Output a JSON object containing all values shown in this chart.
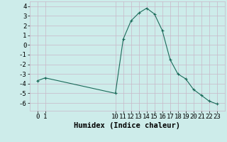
{
  "x": [
    0,
    1,
    10,
    11,
    12,
    13,
    14,
    15,
    16,
    17,
    18,
    19,
    20,
    21,
    22,
    23
  ],
  "y": [
    -3.7,
    -3.4,
    -5.0,
    0.6,
    2.5,
    3.3,
    3.8,
    3.2,
    1.5,
    -1.5,
    -3.0,
    -3.5,
    -4.6,
    -5.2,
    -5.8,
    -6.1
  ],
  "line_color": "#1a6b5a",
  "marker": "+",
  "marker_size": 3,
  "bg_color": "#cdecea",
  "grid_color": "#c8b8c8",
  "xlabel": "Humidex (Indice chaleur)",
  "ylim": [
    -6.8,
    4.5
  ],
  "yticks": [
    -6,
    -5,
    -4,
    -3,
    -2,
    -1,
    0,
    1,
    2,
    3,
    4
  ],
  "xticks": [
    0,
    1,
    10,
    11,
    12,
    13,
    14,
    15,
    16,
    17,
    18,
    19,
    20,
    21,
    22,
    23
  ],
  "tick_label_size": 6.5,
  "xlabel_size": 7.5,
  "xlabel_weight": "bold"
}
